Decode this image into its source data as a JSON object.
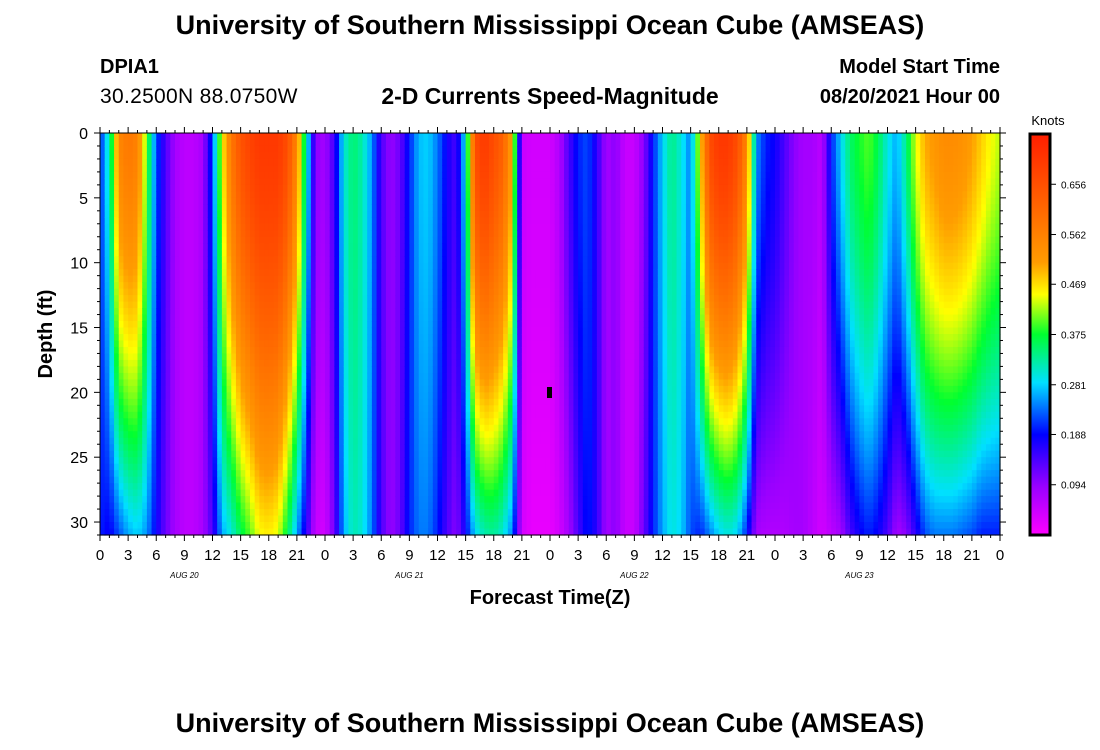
{
  "header": {
    "title": "University of Southern Mississippi Ocean Cube (AMSEAS)",
    "station_id": "DPIA1",
    "station_coords": "30.2500N  88.0750W",
    "subtitle": "2-D Currents Speed-Magnitude",
    "model_start_label": "Model Start Time",
    "model_start_value": "08/20/2021 Hour 00"
  },
  "footer": {
    "title": "University of Southern Mississippi Ocean Cube (AMSEAS)"
  },
  "chart_data": {
    "type": "heatmap",
    "title": "2-D Currents Speed-Magnitude",
    "xlabel": "Forecast Time(Z)",
    "ylabel": "Depth (ft)",
    "ylim": [
      0,
      31
    ],
    "y_inverted": true,
    "xlim_hours": [
      0,
      96
    ],
    "y_ticks": [
      "0",
      "5",
      "10",
      "15",
      "20",
      "25",
      "30"
    ],
    "x_ticks": [
      "0",
      "3",
      "6",
      "9",
      "12",
      "15",
      "18",
      "21",
      "0",
      "3",
      "6",
      "9",
      "12",
      "15",
      "18",
      "21",
      "0",
      "3",
      "6",
      "9",
      "12",
      "15",
      "18",
      "21",
      "0",
      "3",
      "6",
      "9",
      "12",
      "15",
      "18",
      "21",
      "0"
    ],
    "day_labels": [
      "AUG 20",
      "AUG 21",
      "AUG 22",
      "AUG 23"
    ],
    "colorbar": {
      "label": "Knots",
      "range": [
        0,
        0.75
      ],
      "ticks": [
        "0.656",
        "0.562",
        "0.469",
        "0.375",
        "0.281",
        "0.188",
        "0.094"
      ]
    },
    "speed_profiles": [
      {
        "hour": 0,
        "surface": 0.2,
        "bottom": 0.2
      },
      {
        "hour": 1,
        "surface": 0.32,
        "bottom": 0.18
      },
      {
        "hour": 2,
        "surface": 0.55,
        "bottom": 0.22
      },
      {
        "hour": 3,
        "surface": 0.58,
        "bottom": 0.26
      },
      {
        "hour": 4,
        "surface": 0.56,
        "bottom": 0.28
      },
      {
        "hour": 5,
        "surface": 0.4,
        "bottom": 0.25
      },
      {
        "hour": 6,
        "surface": 0.22,
        "bottom": 0.18
      },
      {
        "hour": 7,
        "surface": 0.14,
        "bottom": 0.12
      },
      {
        "hour": 8,
        "surface": 0.08,
        "bottom": 0.08
      },
      {
        "hour": 9,
        "surface": 0.06,
        "bottom": 0.06
      },
      {
        "hour": 10,
        "surface": 0.06,
        "bottom": 0.06
      },
      {
        "hour": 11,
        "surface": 0.08,
        "bottom": 0.08
      },
      {
        "hour": 12,
        "surface": 0.22,
        "bottom": 0.14
      },
      {
        "hour": 13,
        "surface": 0.45,
        "bottom": 0.26
      },
      {
        "hour": 14,
        "surface": 0.58,
        "bottom": 0.3
      },
      {
        "hour": 15,
        "surface": 0.65,
        "bottom": 0.36
      },
      {
        "hour": 16,
        "surface": 0.68,
        "bottom": 0.4
      },
      {
        "hour": 17,
        "surface": 0.7,
        "bottom": 0.45
      },
      {
        "hour": 18,
        "surface": 0.7,
        "bottom": 0.46
      },
      {
        "hour": 19,
        "surface": 0.7,
        "bottom": 0.44
      },
      {
        "hour": 20,
        "surface": 0.66,
        "bottom": 0.36
      },
      {
        "hour": 21,
        "surface": 0.55,
        "bottom": 0.26
      },
      {
        "hour": 22,
        "surface": 0.32,
        "bottom": 0.16
      },
      {
        "hour": 23,
        "surface": 0.1,
        "bottom": 0.05
      },
      {
        "hour": 24,
        "surface": 0.08,
        "bottom": 0.04
      },
      {
        "hour": 25,
        "surface": 0.15,
        "bottom": 0.12
      },
      {
        "hour": 26,
        "surface": 0.3,
        "bottom": 0.26
      },
      {
        "hour": 27,
        "surface": 0.35,
        "bottom": 0.32
      },
      {
        "hour": 28,
        "surface": 0.32,
        "bottom": 0.3
      },
      {
        "hour": 29,
        "surface": 0.25,
        "bottom": 0.24
      },
      {
        "hour": 30,
        "surface": 0.14,
        "bottom": 0.14
      },
      {
        "hour": 31,
        "surface": 0.09,
        "bottom": 0.09
      },
      {
        "hour": 32,
        "surface": 0.12,
        "bottom": 0.12
      },
      {
        "hour": 33,
        "surface": 0.2,
        "bottom": 0.2
      },
      {
        "hour": 34,
        "surface": 0.27,
        "bottom": 0.24
      },
      {
        "hour": 35,
        "surface": 0.28,
        "bottom": 0.24
      },
      {
        "hour": 36,
        "surface": 0.24,
        "bottom": 0.2
      },
      {
        "hour": 37,
        "surface": 0.18,
        "bottom": 0.14
      },
      {
        "hour": 38,
        "surface": 0.14,
        "bottom": 0.1
      },
      {
        "hour": 39,
        "surface": 0.3,
        "bottom": 0.18
      },
      {
        "hour": 40,
        "surface": 0.66,
        "bottom": 0.28
      },
      {
        "hour": 41,
        "surface": 0.7,
        "bottom": 0.32
      },
      {
        "hour": 42,
        "surface": 0.66,
        "bottom": 0.33
      },
      {
        "hour": 43,
        "surface": 0.62,
        "bottom": 0.3
      },
      {
        "hour": 44,
        "surface": 0.5,
        "bottom": 0.24
      },
      {
        "hour": 45,
        "surface": 0.05,
        "bottom": 0.04
      },
      {
        "hour": 46,
        "surface": 0.04,
        "bottom": 0.02
      },
      {
        "hour": 47,
        "surface": 0.04,
        "bottom": 0.02
      },
      {
        "hour": 48,
        "surface": 0.04,
        "bottom": 0.02
      },
      {
        "hour": 49,
        "surface": 0.07,
        "bottom": 0.04
      },
      {
        "hour": 50,
        "surface": 0.14,
        "bottom": 0.08
      },
      {
        "hour": 51,
        "surface": 0.2,
        "bottom": 0.14
      },
      {
        "hour": 52,
        "surface": 0.22,
        "bottom": 0.2
      },
      {
        "hour": 53,
        "surface": 0.16,
        "bottom": 0.16
      },
      {
        "hour": 54,
        "surface": 0.08,
        "bottom": 0.08
      },
      {
        "hour": 55,
        "surface": 0.1,
        "bottom": 0.1
      },
      {
        "hour": 56,
        "surface": 0.05,
        "bottom": 0.05
      },
      {
        "hour": 57,
        "surface": 0.05,
        "bottom": 0.05
      },
      {
        "hour": 58,
        "surface": 0.1,
        "bottom": 0.12
      },
      {
        "hour": 59,
        "surface": 0.2,
        "bottom": 0.2
      },
      {
        "hour": 60,
        "surface": 0.28,
        "bottom": 0.26
      },
      {
        "hour": 61,
        "surface": 0.34,
        "bottom": 0.3
      },
      {
        "hour": 62,
        "surface": 0.3,
        "bottom": 0.28
      },
      {
        "hour": 63,
        "surface": 0.24,
        "bottom": 0.22
      },
      {
        "hour": 64,
        "surface": 0.46,
        "bottom": 0.2
      },
      {
        "hour": 65,
        "surface": 0.66,
        "bottom": 0.24
      },
      {
        "hour": 66,
        "surface": 0.7,
        "bottom": 0.28
      },
      {
        "hour": 67,
        "surface": 0.7,
        "bottom": 0.3
      },
      {
        "hour": 68,
        "surface": 0.66,
        "bottom": 0.28
      },
      {
        "hour": 69,
        "surface": 0.55,
        "bottom": 0.2
      },
      {
        "hour": 70,
        "surface": 0.25,
        "bottom": 0.08
      },
      {
        "hour": 71,
        "surface": 0.2,
        "bottom": 0.07
      },
      {
        "hour": 72,
        "surface": 0.18,
        "bottom": 0.07
      },
      {
        "hour": 73,
        "surface": 0.14,
        "bottom": 0.07
      },
      {
        "hour": 74,
        "surface": 0.1,
        "bottom": 0.08
      },
      {
        "hour": 75,
        "surface": 0.08,
        "bottom": 0.08
      },
      {
        "hour": 76,
        "surface": 0.08,
        "bottom": 0.06
      },
      {
        "hour": 77,
        "surface": 0.06,
        "bottom": 0.04
      },
      {
        "hour": 78,
        "surface": 0.2,
        "bottom": 0.06
      },
      {
        "hour": 79,
        "surface": 0.28,
        "bottom": 0.08
      },
      {
        "hour": 80,
        "surface": 0.35,
        "bottom": 0.14
      },
      {
        "hour": 81,
        "surface": 0.38,
        "bottom": 0.18
      },
      {
        "hour": 82,
        "surface": 0.4,
        "bottom": 0.2
      },
      {
        "hour": 83,
        "surface": 0.36,
        "bottom": 0.18
      },
      {
        "hour": 84,
        "surface": 0.3,
        "bottom": 0.14
      },
      {
        "hour": 85,
        "surface": 0.26,
        "bottom": 0.08
      },
      {
        "hour": 86,
        "surface": 0.34,
        "bottom": 0.1
      },
      {
        "hour": 87,
        "surface": 0.44,
        "bottom": 0.16
      },
      {
        "hour": 88,
        "surface": 0.5,
        "bottom": 0.22
      },
      {
        "hour": 89,
        "surface": 0.52,
        "bottom": 0.24
      },
      {
        "hour": 90,
        "surface": 0.54,
        "bottom": 0.24
      },
      {
        "hour": 91,
        "surface": 0.54,
        "bottom": 0.24
      },
      {
        "hour": 92,
        "surface": 0.53,
        "bottom": 0.23
      },
      {
        "hour": 93,
        "surface": 0.51,
        "bottom": 0.22
      },
      {
        "hour": 94,
        "surface": 0.48,
        "bottom": 0.2
      },
      {
        "hour": 95,
        "surface": 0.45,
        "bottom": 0.2
      },
      {
        "hour": 96,
        "surface": 0.43,
        "bottom": 0.2
      }
    ]
  }
}
